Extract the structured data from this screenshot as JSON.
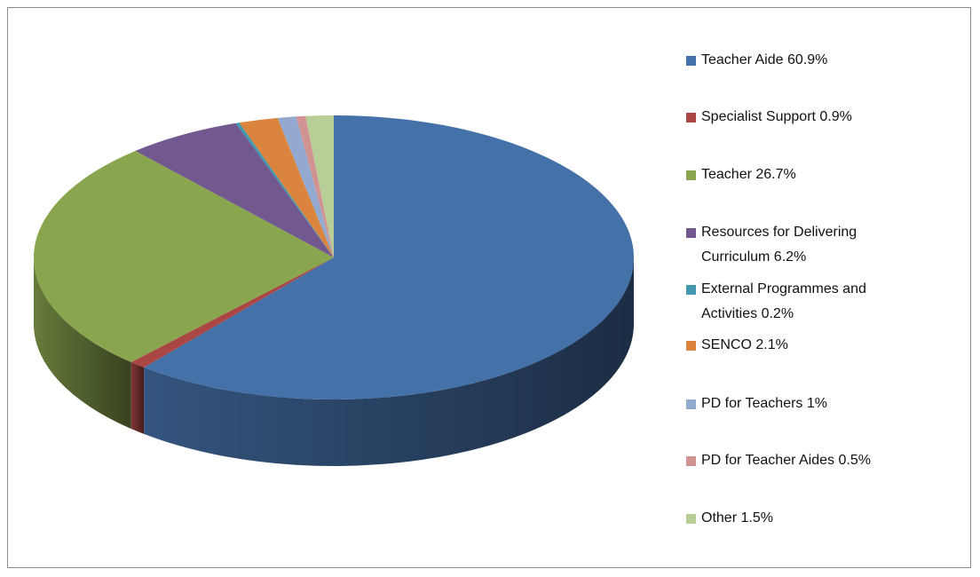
{
  "chart_data": {
    "type": "pie3d",
    "categories": [
      "Teacher Aide",
      "Specialist Support",
      "Teacher",
      "Resources for Delivering Curriculum",
      "External Programmes and Activities",
      "SENCO",
      "PD for Teachers",
      "PD for Teacher Aides",
      "Other"
    ],
    "values": [
      60.9,
      0.9,
      26.7,
      6.2,
      0.2,
      2.1,
      1,
      0.5,
      1.5
    ],
    "value_labels": [
      "60.9%",
      "0.9%",
      "26.7%",
      "6.2%",
      "0.2%",
      "2.1%",
      "1%",
      "0.5%",
      "1.5%"
    ],
    "colors": [
      "#4571a9",
      "#aa4643",
      "#89a54e",
      "#71588f",
      "#4198af",
      "#db843d",
      "#93a9cf",
      "#d19392",
      "#b9cd96"
    ],
    "legend": "right"
  }
}
